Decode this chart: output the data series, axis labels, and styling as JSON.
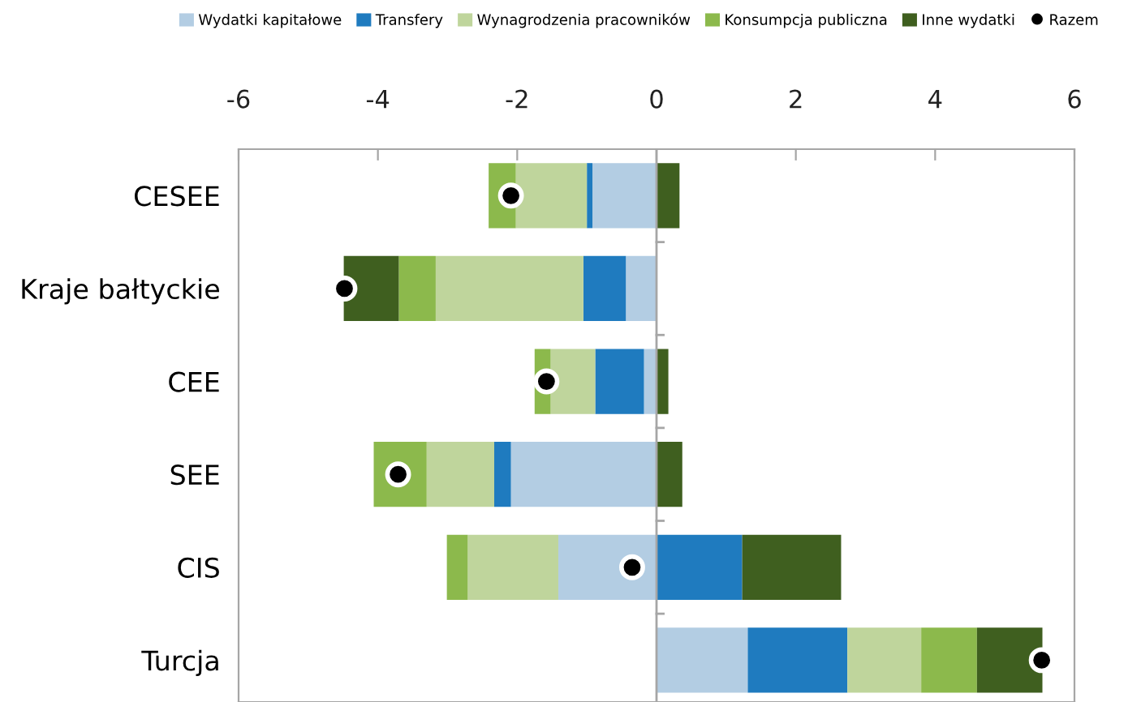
{
  "chart_data": {
    "type": "bar",
    "orientation": "horizontal",
    "stacked": true,
    "categories": [
      "CESEE",
      "Kraje bałtyckie",
      "CEE",
      "SEE",
      "CIS",
      "Turcja"
    ],
    "series": [
      {
        "name": "Wydatki kapitałowe",
        "color": "#b3cde3",
        "values": [
          -0.92,
          -0.44,
          -0.18,
          -2.09,
          -1.41,
          1.31
        ]
      },
      {
        "name": "Transfery",
        "color": "#1f7bbf",
        "values": [
          -0.08,
          -0.61,
          -0.7,
          -0.24,
          1.23,
          1.43
        ]
      },
      {
        "name": "Wynagrodzenia pracowników",
        "color": "#bfd59c",
        "values": [
          -1.02,
          -2.12,
          -0.64,
          -0.97,
          -1.3,
          1.06
        ]
      },
      {
        "name": "Konsumpcja publiczna",
        "color": "#8cb94c",
        "values": [
          -0.39,
          -0.53,
          -0.23,
          -0.76,
          -0.3,
          0.8
        ]
      },
      {
        "name": "Inne wydatki",
        "color": "#3f5f1f",
        "values": [
          0.33,
          -0.79,
          0.17,
          0.37,
          1.42,
          0.94
        ]
      },
      {
        "name": "Razem",
        "type": "scatter",
        "color": "#000000",
        "marker": "circle",
        "values": [
          -2.09,
          -4.48,
          -1.58,
          -3.71,
          -0.35,
          5.53
        ]
      }
    ],
    "xlim": [
      -6,
      6
    ],
    "xticks": [
      -6,
      -4,
      -2,
      0,
      2,
      4,
      6
    ],
    "ref_lines": [
      {
        "axis": "x",
        "value": 0,
        "color": "#a6a6a6"
      }
    ],
    "grid": false,
    "legend": "top"
  }
}
